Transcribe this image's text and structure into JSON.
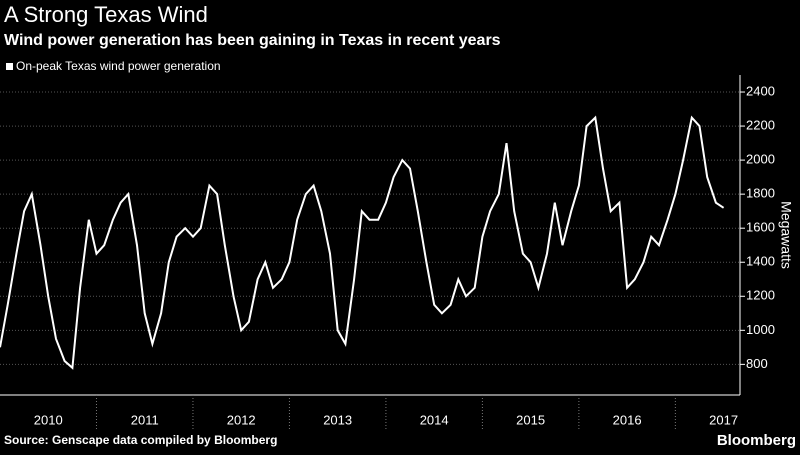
{
  "chart_data": {
    "type": "line",
    "title": "A Strong Texas Wind",
    "subtitle": "Wind power generation has been gaining in Texas in recent years",
    "y_label": "Megawatts",
    "source": "Source: Genscape data compiled by Bloomberg",
    "brand": "Bloomberg",
    "x": [
      2010.0,
      2010.08,
      2010.17,
      2010.25,
      2010.33,
      2010.42,
      2010.5,
      2010.58,
      2010.67,
      2010.75,
      2010.83,
      2010.92,
      2011.0,
      2011.08,
      2011.17,
      2011.25,
      2011.33,
      2011.42,
      2011.5,
      2011.58,
      2011.67,
      2011.75,
      2011.83,
      2011.92,
      2012.0,
      2012.08,
      2012.17,
      2012.25,
      2012.33,
      2012.42,
      2012.5,
      2012.58,
      2012.67,
      2012.75,
      2012.83,
      2012.92,
      2013.0,
      2013.08,
      2013.17,
      2013.25,
      2013.33,
      2013.42,
      2013.5,
      2013.58,
      2013.67,
      2013.75,
      2013.83,
      2013.92,
      2014.0,
      2014.08,
      2014.17,
      2014.25,
      2014.33,
      2014.42,
      2014.5,
      2014.58,
      2014.67,
      2014.75,
      2014.83,
      2014.92,
      2015.0,
      2015.08,
      2015.17,
      2015.25,
      2015.33,
      2015.42,
      2015.5,
      2015.58,
      2015.67,
      2015.75,
      2015.83,
      2015.92,
      2016.0,
      2016.08,
      2016.17,
      2016.25,
      2016.33,
      2016.42,
      2016.5,
      2016.58,
      2016.67,
      2016.75,
      2016.83,
      2016.92,
      2017.0,
      2017.08,
      2017.17,
      2017.25,
      2017.33,
      2017.42,
      2017.5
    ],
    "series": [
      {
        "name": "On-peak Texas wind power generation",
        "color": "#ffffff",
        "values": [
          900,
          1150,
          1450,
          1700,
          1800,
          1500,
          1200,
          950,
          820,
          780,
          1250,
          1650,
          1450,
          1500,
          1650,
          1750,
          1800,
          1500,
          1100,
          920,
          1100,
          1400,
          1550,
          1600,
          1550,
          1600,
          1850,
          1800,
          1500,
          1200,
          1000,
          1050,
          1300,
          1400,
          1250,
          1300,
          1400,
          1650,
          1800,
          1850,
          1700,
          1450,
          1000,
          920,
          1300,
          1700,
          1650,
          1650,
          1750,
          1900,
          2000,
          1950,
          1700,
          1400,
          1150,
          1100,
          1150,
          1300,
          1200,
          1250,
          1550,
          1700,
          1800,
          2100,
          1700,
          1450,
          1400,
          1250,
          1450,
          1750,
          1500,
          1700,
          1850,
          2200,
          2250,
          1950,
          1700,
          1750,
          1250,
          1300,
          1400,
          1550,
          1500,
          1650,
          1800,
          2000,
          2250,
          2200,
          1900,
          1750,
          1720
        ]
      }
    ],
    "xlim": [
      2010,
      2017.67
    ],
    "xticks": [
      {
        "value": 2010.5,
        "label": "2010"
      },
      {
        "value": 2011.5,
        "label": "2011"
      },
      {
        "value": 2012.5,
        "label": "2012"
      },
      {
        "value": 2013.5,
        "label": "2013"
      },
      {
        "value": 2014.5,
        "label": "2014"
      },
      {
        "value": 2015.5,
        "label": "2015"
      },
      {
        "value": 2016.5,
        "label": "2016"
      },
      {
        "value": 2017.5,
        "label": "2017"
      }
    ],
    "ylim": [
      620,
      2500
    ],
    "yticks": [
      800,
      1000,
      1200,
      1400,
      1600,
      1800,
      2000,
      2200,
      2400
    ],
    "grid": true
  }
}
